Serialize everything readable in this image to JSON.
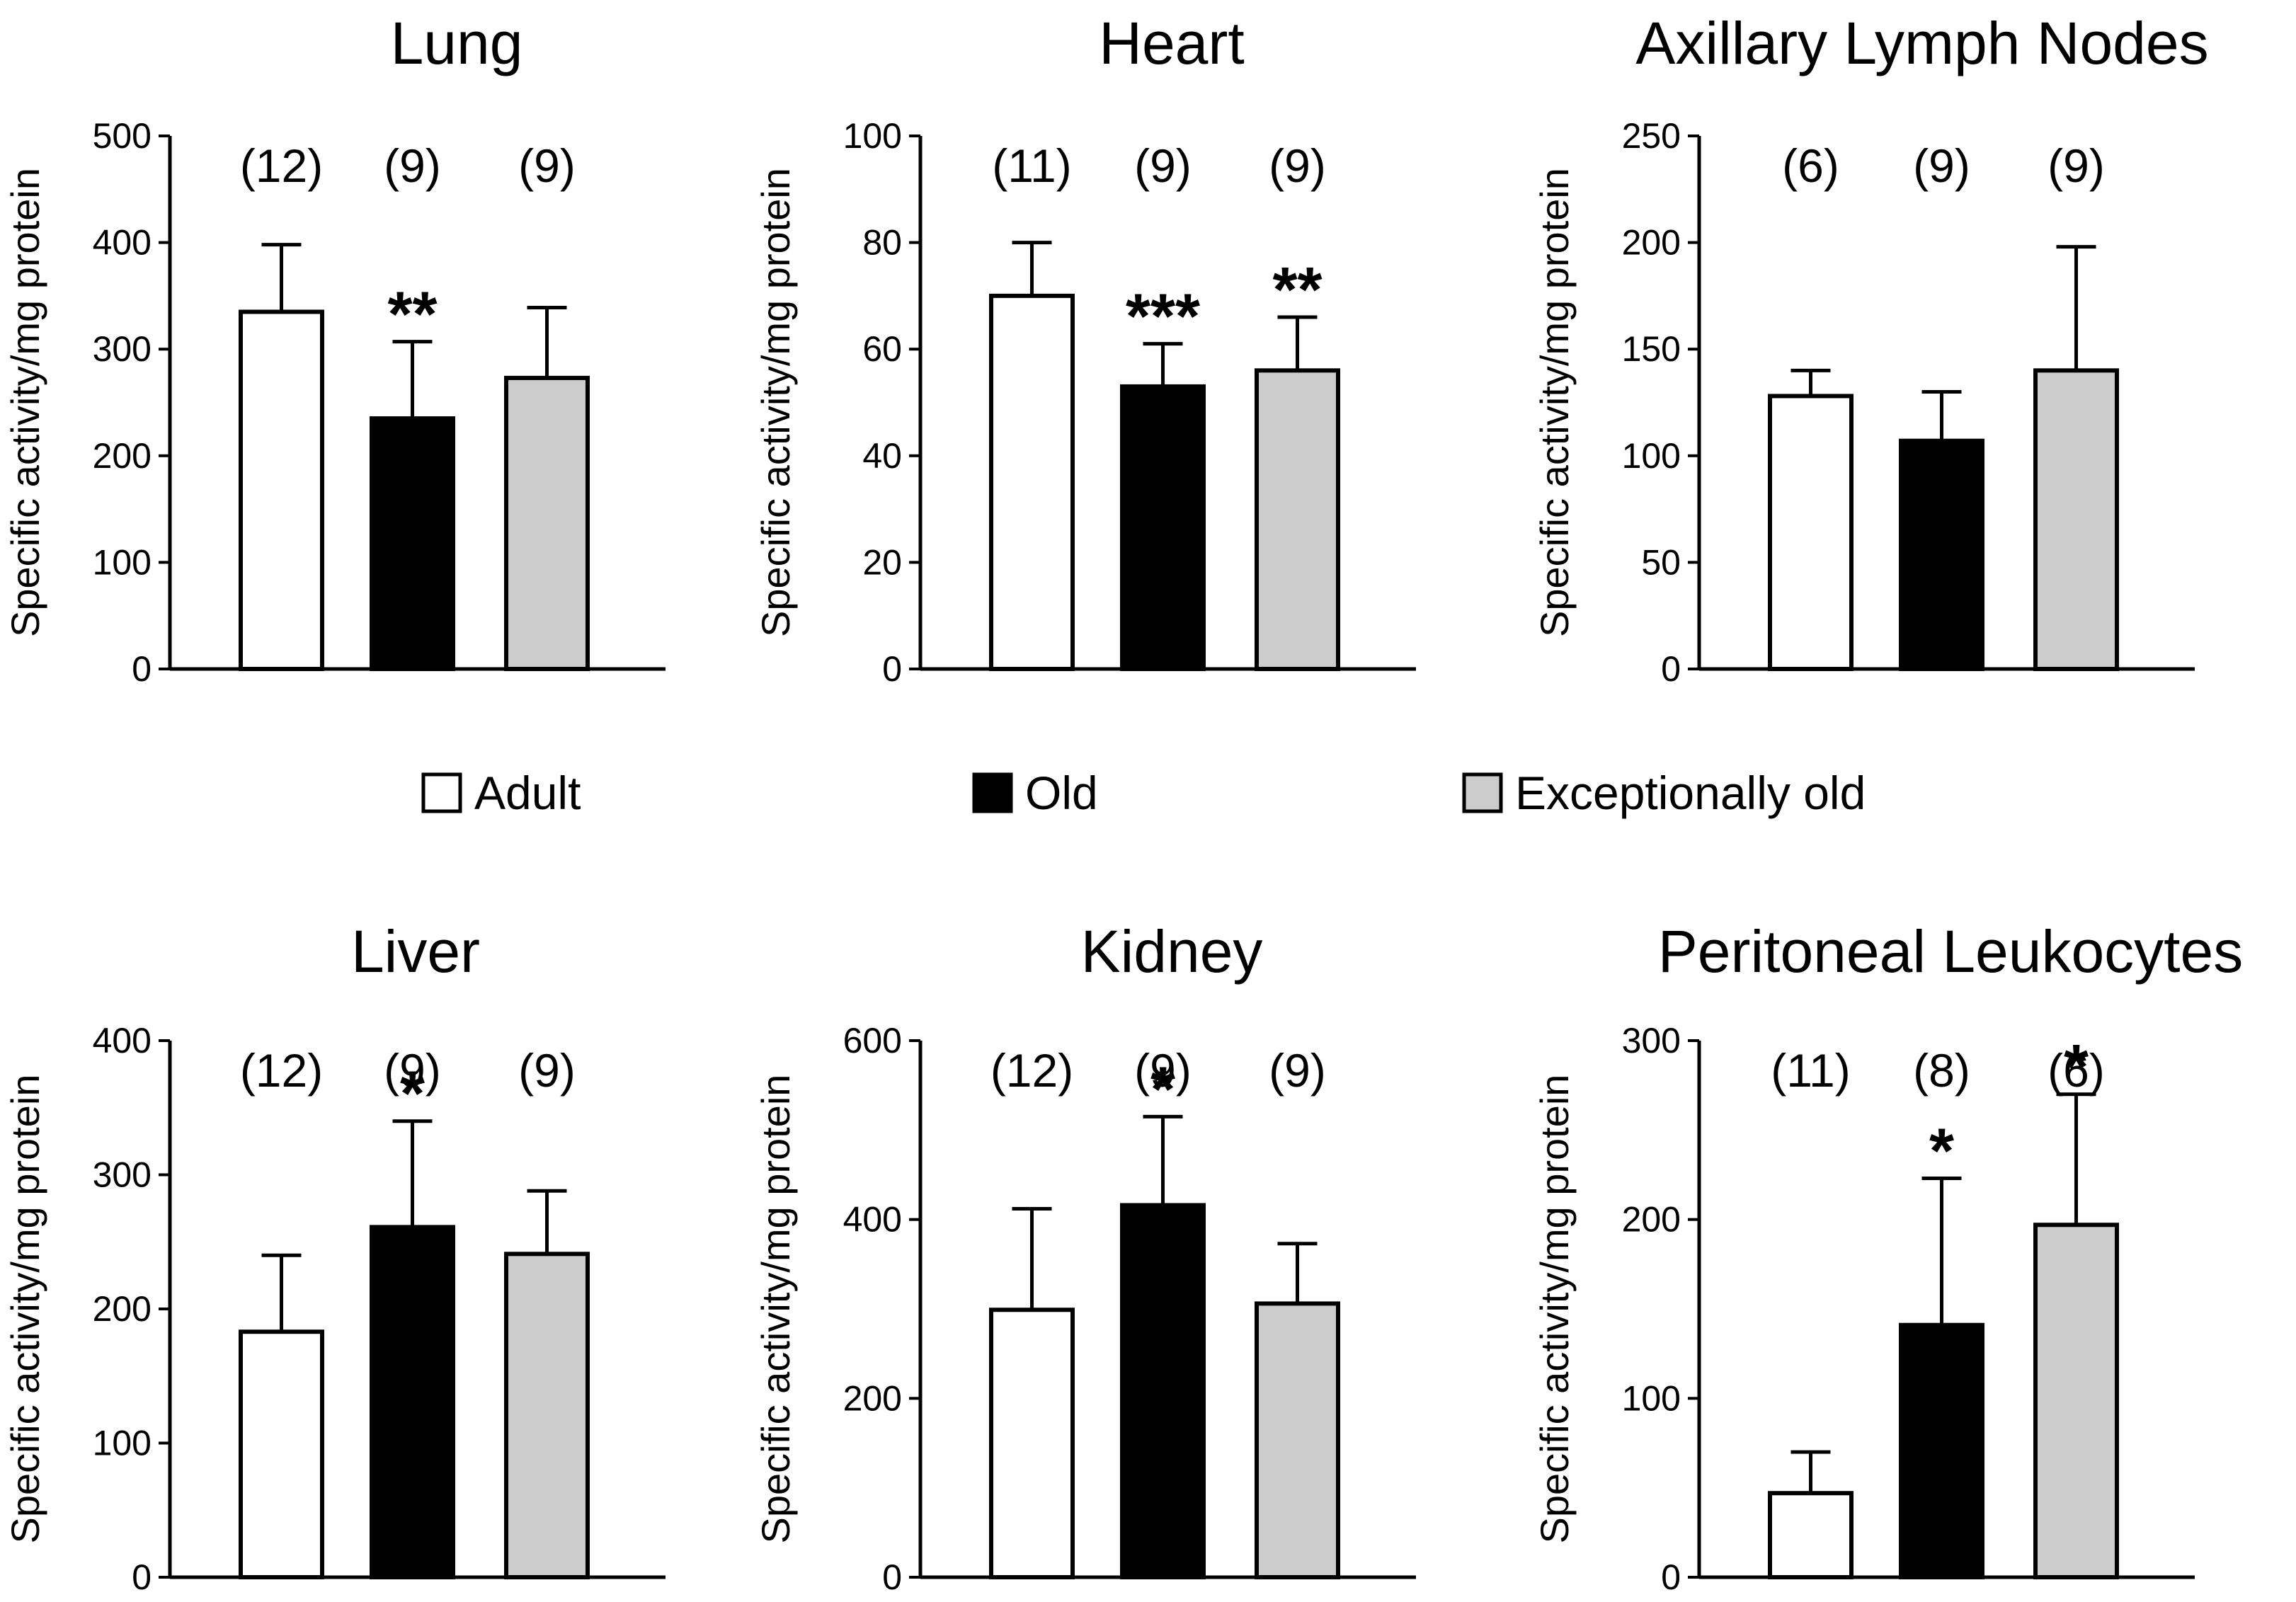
{
  "legend": {
    "position": "center",
    "entries": [
      {
        "label": "Adult",
        "color": "#ffffff"
      },
      {
        "label": "Old",
        "color": "#000000"
      },
      {
        "label": "Exceptionally old",
        "color": "#cccccc"
      }
    ]
  },
  "chart_data": [
    {
      "type": "bar",
      "title": "Lung",
      "ylabel": "Specific activity/mg protein",
      "ylim": [
        0,
        500
      ],
      "yticks": [
        0,
        100,
        200,
        300,
        400,
        500
      ],
      "categories": [
        "Adult",
        "Old",
        "Exceptionally old"
      ],
      "values": [
        335,
        235,
        273
      ],
      "errors": [
        63,
        72,
        66
      ],
      "n": [
        "(12)",
        "(9)",
        "(9)"
      ],
      "significance": [
        "",
        "**",
        ""
      ]
    },
    {
      "type": "bar",
      "title": "Heart",
      "ylabel": "Specific activity/mg protein",
      "ylim": [
        0,
        100
      ],
      "yticks": [
        0,
        20,
        40,
        60,
        80,
        100
      ],
      "categories": [
        "Adult",
        "Old",
        "Exceptionally old"
      ],
      "values": [
        70,
        53,
        56
      ],
      "errors": [
        10,
        8,
        10
      ],
      "n": [
        "(11)",
        "(9)",
        "(9)"
      ],
      "significance": [
        "",
        "***",
        "**"
      ]
    },
    {
      "type": "bar",
      "title": "Axillary Lymph Nodes",
      "ylabel": "Specific activity/mg protein",
      "ylim": [
        0,
        250
      ],
      "yticks": [
        0,
        50,
        100,
        150,
        200,
        250
      ],
      "categories": [
        "Adult",
        "Old",
        "Exceptionally old"
      ],
      "values": [
        128,
        107,
        140
      ],
      "errors": [
        12,
        23,
        58
      ],
      "n": [
        "(6)",
        "(9)",
        "(9)"
      ],
      "significance": [
        "",
        "",
        ""
      ]
    },
    {
      "type": "bar",
      "title": "Liver",
      "ylabel": "Specific activity/mg protein",
      "ylim": [
        0,
        400
      ],
      "yticks": [
        0,
        100,
        200,
        300,
        400
      ],
      "categories": [
        "Adult",
        "Old",
        "Exceptionally old"
      ],
      "values": [
        183,
        261,
        241
      ],
      "errors": [
        57,
        79,
        47
      ],
      "n": [
        "(12)",
        "(9)",
        "(9)"
      ],
      "significance": [
        "",
        "*",
        ""
      ]
    },
    {
      "type": "bar",
      "title": "Kidney",
      "ylabel": "Specific activity/mg protein",
      "ylim": [
        0,
        600
      ],
      "yticks": [
        0,
        200,
        400,
        600
      ],
      "categories": [
        "Adult",
        "Old",
        "Exceptionally old"
      ],
      "values": [
        299,
        416,
        306
      ],
      "errors": [
        113,
        99,
        67
      ],
      "n": [
        "(12)",
        "(9)",
        "(9)"
      ],
      "significance": [
        "",
        "*",
        ""
      ]
    },
    {
      "type": "bar",
      "title": "Peritoneal Leukocytes",
      "ylabel": "Specific activity/mg protein",
      "ylim": [
        0,
        300
      ],
      "yticks": [
        0,
        100,
        200,
        300
      ],
      "categories": [
        "Adult",
        "Old",
        "Exceptionally old"
      ],
      "values": [
        47,
        141,
        197
      ],
      "errors": [
        23,
        82,
        73
      ],
      "n": [
        "(11)",
        "(8)",
        "(6)"
      ],
      "significance": [
        "",
        "*",
        "*"
      ]
    }
  ]
}
